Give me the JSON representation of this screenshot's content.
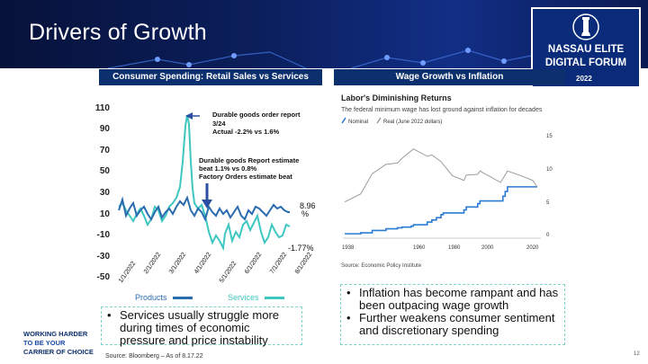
{
  "title": "Drivers of Growth",
  "brand": {
    "line1": "NASSAU ELITE",
    "line2": "DIGITAL FORUM",
    "year": "2022"
  },
  "left_panel": {
    "header": "Consumer Spending: Retail Sales vs Services",
    "legend": {
      "products": "Products",
      "services": "Services"
    },
    "annotations": {
      "a1_line1": "Durable goods order report",
      "a1_line2": "3/24",
      "a1_line3": "Actual  -2.2% vs 1.6%",
      "a2_line1": "Durable goods Report estimate",
      "a2_line2": "beat 1.1% vs 0.8%",
      "a2_line3": "Factory Orders estimate beat"
    },
    "end_labels": {
      "products_a": "8.96",
      "products_b": "%",
      "services": "-1.77%"
    },
    "bullets": [
      "Services usually struggle more during times of economic pressure and price instability"
    ]
  },
  "right_panel": {
    "header": "Wage Growth vs Inflation",
    "chart_title": "Labor's Diminishing Returns",
    "chart_subtitle": "The federal minimum wage has lost ground against inflation for decades",
    "legend": {
      "nominal": "Nominal",
      "real": "Real (June 2022 dollars)"
    },
    "source": "Source: Economic Policy Institute",
    "bullets": [
      "Inflation has become rampant and has been outpacing wage growth",
      "Further weakens consumer sentiment and discretionary spending"
    ]
  },
  "footer": {
    "tag_line1": "WORKING HARDER",
    "tag_line2": "TO BE YOUR",
    "tag_line3": "CARRIER OF CHOICE",
    "source": "Source: Bloomberg –  As of 8.17.22",
    "page": "12"
  },
  "colors": {
    "navy": "#0c2f6e",
    "products": "#2b6cb0",
    "services": "#3ec7c0",
    "nominal": "#2a7bd4",
    "real": "#9a9a9a"
  },
  "chart_data": [
    {
      "type": "line",
      "x": [
        "1/1/2022",
        "2/1/2022",
        "3/1/2022",
        "4/1/2022",
        "5/1/2022",
        "6/1/2022",
        "7/1/2022",
        "8/1/2022"
      ],
      "yticks": [
        "110",
        "90",
        "70",
        "50",
        "30",
        "10",
        "-10",
        "-30",
        "-50"
      ],
      "ylim": [
        -50,
        110
      ],
      "series": [
        {
          "name": "Products",
          "end_value": 8.96
        },
        {
          "name": "Services",
          "end_value": -1.77
        }
      ]
    },
    {
      "type": "line",
      "title": "Labor's Diminishing Returns",
      "subtitle": "The federal minimum wage has lost ground against inflation for decades",
      "xticks": [
        "1938",
        "1960",
        "1980",
        "2000",
        "2020"
      ],
      "yticks": [
        "15",
        "10",
        "5",
        "0"
      ],
      "ylim": [
        0,
        15
      ],
      "series": [
        {
          "name": "Nominal",
          "points": [
            [
              1938,
              0.25
            ],
            [
              1945,
              0.4
            ],
            [
              1950,
              0.75
            ],
            [
              1956,
              1.0
            ],
            [
              1961,
              1.15
            ],
            [
              1963,
              1.25
            ],
            [
              1967,
              1.4
            ],
            [
              1968,
              1.6
            ],
            [
              1974,
              2.0
            ],
            [
              1976,
              2.3
            ],
            [
              1978,
              2.65
            ],
            [
              1980,
              3.1
            ],
            [
              1981,
              3.35
            ],
            [
              1990,
              3.8
            ],
            [
              1991,
              4.25
            ],
            [
              1996,
              4.75
            ],
            [
              1997,
              5.15
            ],
            [
              2007,
              5.85
            ],
            [
              2008,
              6.55
            ],
            [
              2009,
              7.25
            ],
            [
              2022,
              7.25
            ]
          ]
        },
        {
          "name": "Real (June 2022 dollars)",
          "points": [
            [
              1938,
              5.0
            ],
            [
              1945,
              6.2
            ],
            [
              1950,
              9.2
            ],
            [
              1956,
              10.6
            ],
            [
              1961,
              10.8
            ],
            [
              1963,
              11.5
            ],
            [
              1968,
              12.9
            ],
            [
              1974,
              11.8
            ],
            [
              1976,
              12.0
            ],
            [
              1980,
              11.0
            ],
            [
              1985,
              8.9
            ],
            [
              1990,
              8.2
            ],
            [
              1991,
              9.0
            ],
            [
              1996,
              9.1
            ],
            [
              1997,
              9.6
            ],
            [
              2006,
              7.9
            ],
            [
              2009,
              9.6
            ],
            [
              2015,
              8.9
            ],
            [
              2020,
              8.2
            ],
            [
              2022,
              7.25
            ]
          ]
        }
      ]
    }
  ]
}
